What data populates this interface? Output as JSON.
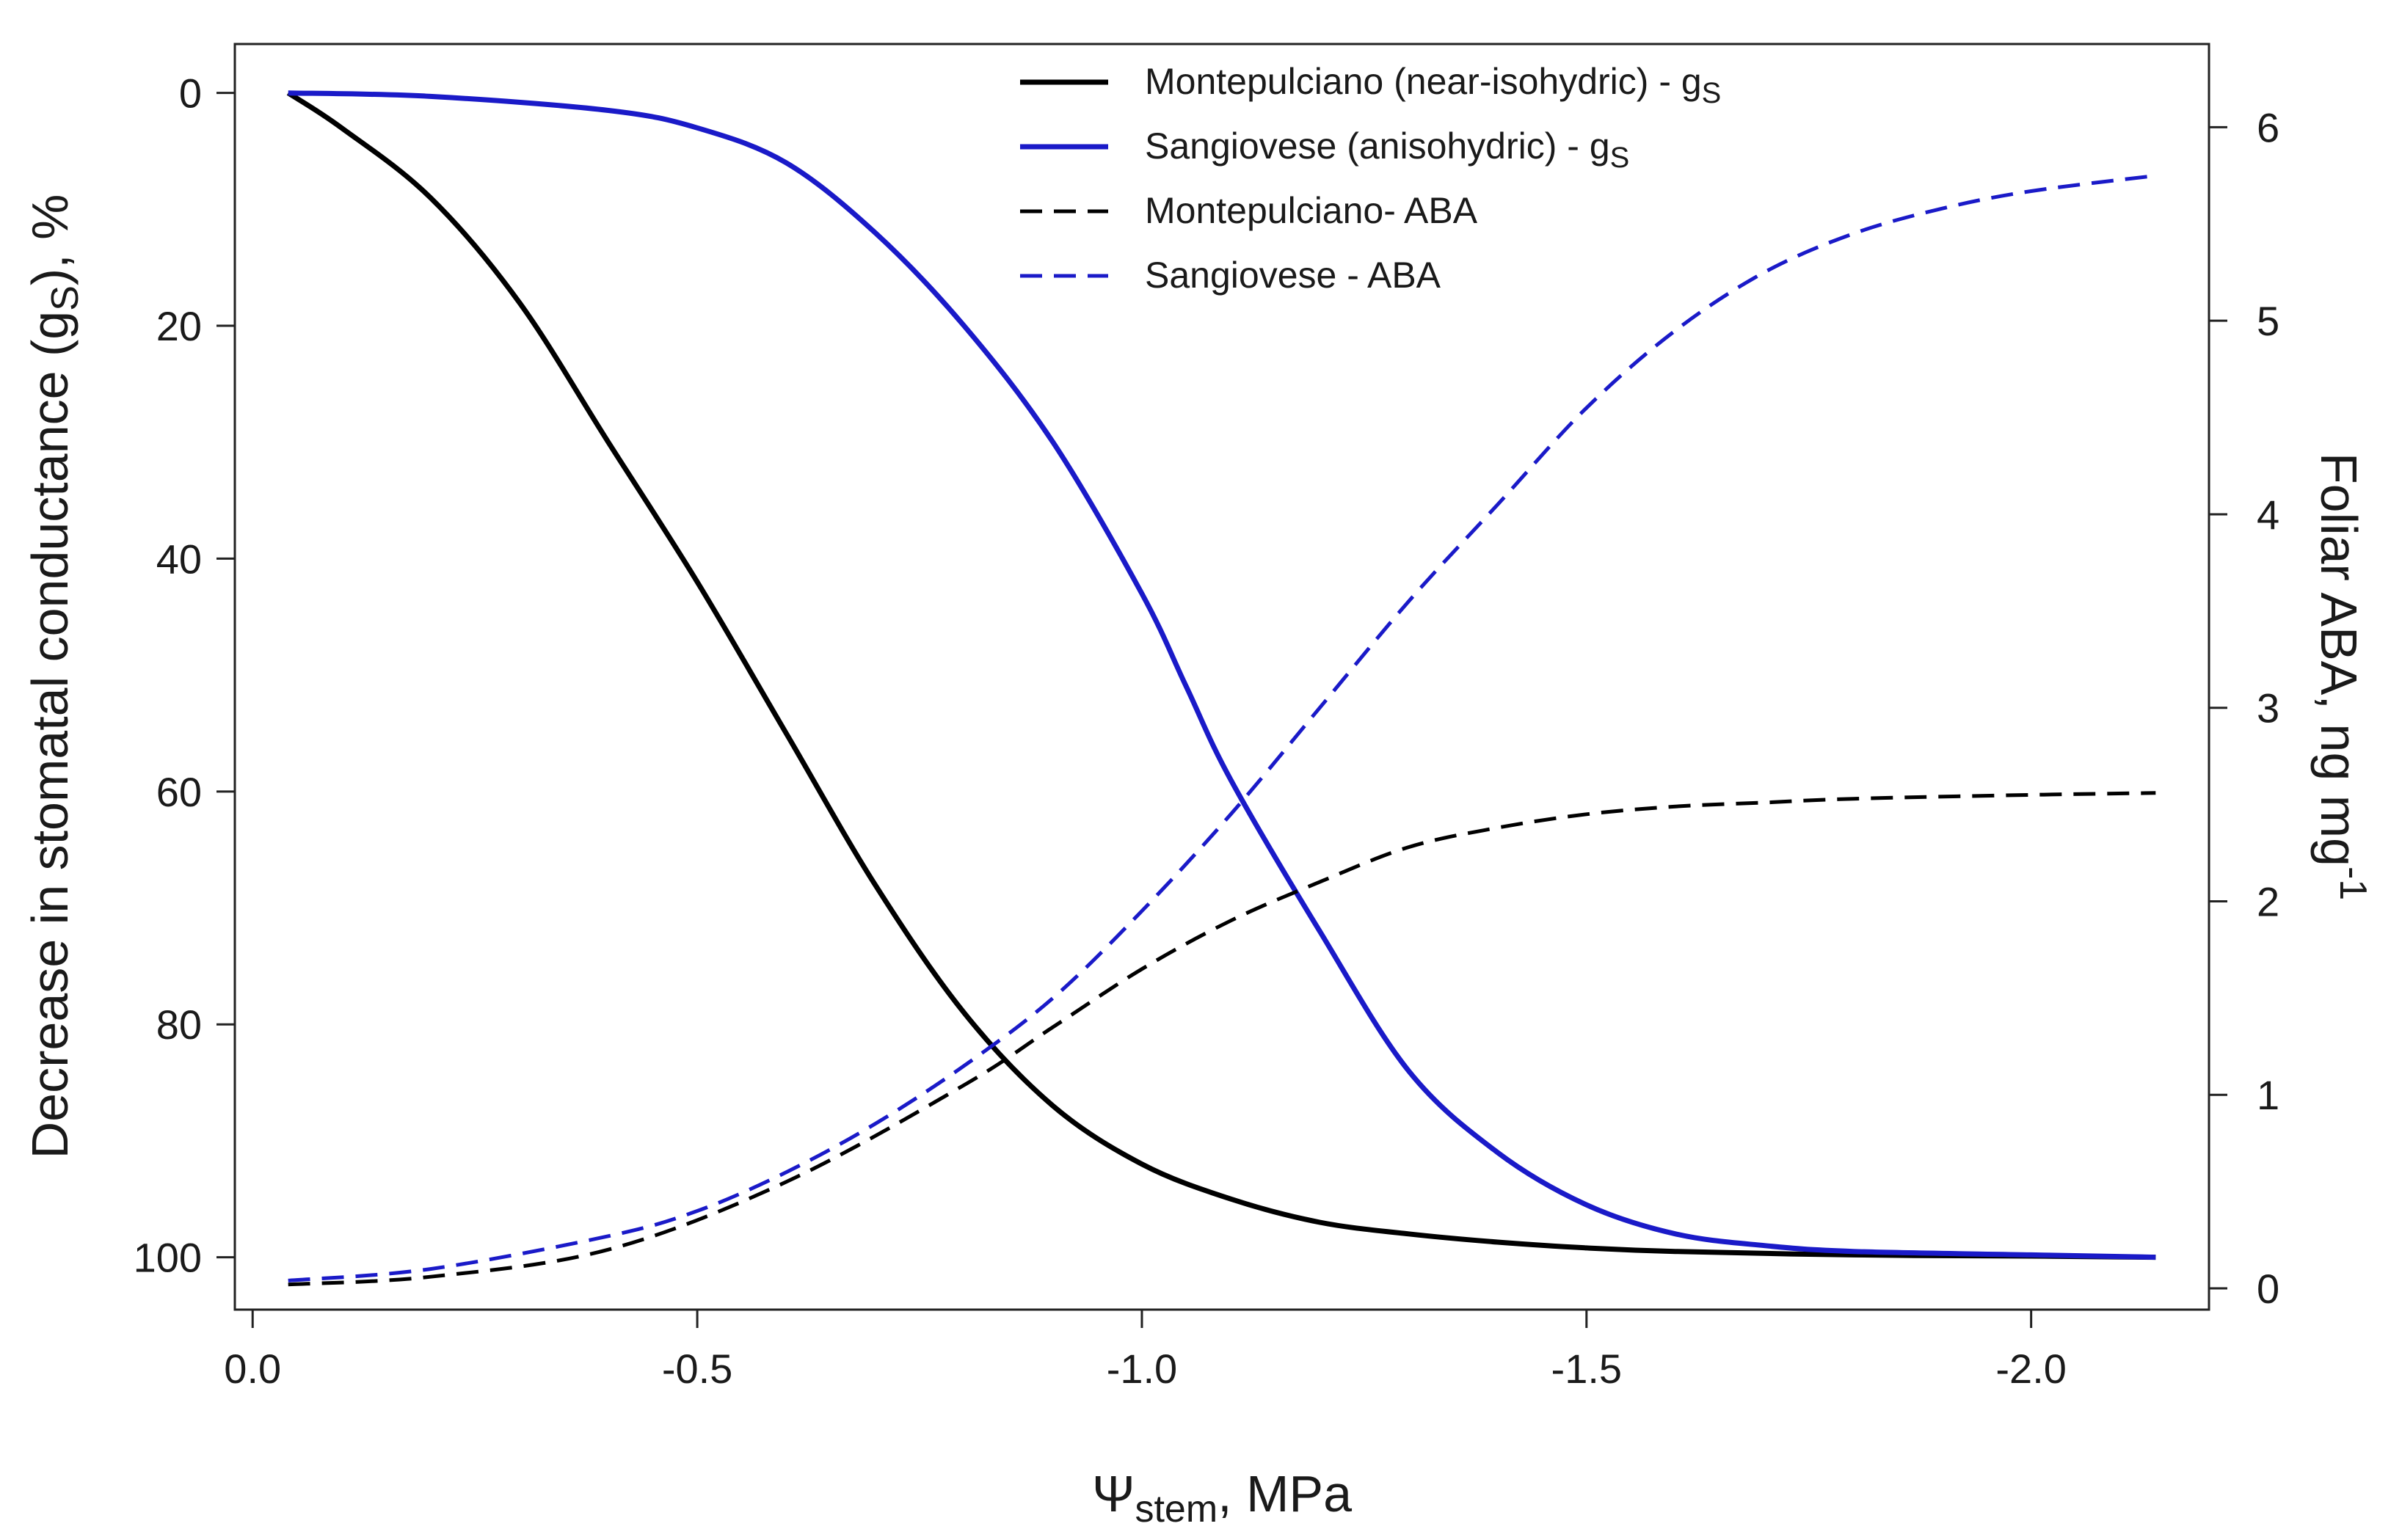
{
  "chart_data": {
    "type": "line",
    "title": "",
    "xlabel": {
      "psi": "Ψ",
      "sub": "stem",
      "rest": ", MPa"
    },
    "ylabel_left": {
      "pre": "Decrease in stomatal conductance (g",
      "sub": "S",
      "post": "), %"
    },
    "ylabel_right": {
      "pre": "Foliar ABA, ng mg",
      "sup": "-1"
    },
    "x_range": [
      0.02,
      -2.2
    ],
    "x_ticks": [
      "0.0",
      "-0.5",
      "-1.0",
      "-1.5",
      "-2.0"
    ],
    "y_left_range": [
      -4.2,
      104.5
    ],
    "y_left_ticks": [
      "0",
      "20",
      "40",
      "60",
      "80",
      "100"
    ],
    "y_right_range": [
      -0.11,
      6.43
    ],
    "y_right_ticks": [
      "0",
      "1",
      "2",
      "3",
      "4",
      "5",
      "6"
    ],
    "series": [
      {
        "name": "Montepulciano (near-isohydric) - g",
        "sub": "S",
        "axis": "left",
        "color": "#000000",
        "dash": "solid",
        "x": [
          -0.04,
          -0.1,
          -0.2,
          -0.3,
          -0.4,
          -0.5,
          -0.6,
          -0.7,
          -0.8,
          -0.9,
          -1.0,
          -1.1,
          -1.2,
          -1.3,
          -1.4,
          -1.5,
          -1.6,
          -1.8,
          -2.0,
          -2.14
        ],
        "y": [
          0,
          3,
          9,
          18,
          30,
          42,
          55,
          68,
          79,
          87,
          92,
          95,
          97,
          98,
          98.7,
          99.2,
          99.5,
          99.8,
          99.9,
          100
        ]
      },
      {
        "name": "Sangiovese (anisohydric) - g",
        "sub": "S",
        "axis": "left",
        "color": "#1a1ac8",
        "dash": "solid",
        "x": [
          -0.04,
          -0.2,
          -0.4,
          -0.5,
          -0.6,
          -0.7,
          -0.8,
          -0.9,
          -1.0,
          -1.05,
          -1.1,
          -1.2,
          -1.3,
          -1.4,
          -1.5,
          -1.6,
          -1.7,
          -1.8,
          -2.0,
          -2.14
        ],
        "y": [
          0,
          0.3,
          1.5,
          3,
          6,
          12,
          20,
          30,
          43,
          51,
          59,
          72,
          84,
          91,
          95.5,
          98,
          99,
          99.5,
          99.8,
          100
        ]
      },
      {
        "name": "Montepulciano- ABA",
        "axis": "right",
        "color": "#000000",
        "dash": "dashed",
        "x": [
          -0.04,
          -0.2,
          -0.4,
          -0.6,
          -0.8,
          -0.9,
          -1.0,
          -1.1,
          -1.2,
          -1.3,
          -1.4,
          -1.5,
          -1.6,
          -1.7,
          -1.8,
          -2.0,
          -2.14
        ],
        "y": [
          0.02,
          0.06,
          0.2,
          0.55,
          1.05,
          1.35,
          1.65,
          1.9,
          2.1,
          2.28,
          2.38,
          2.45,
          2.49,
          2.51,
          2.53,
          2.55,
          2.56
        ]
      },
      {
        "name": "Sangiovese - ABA",
        "axis": "right",
        "color": "#1a1ac8",
        "dash": "dashed",
        "x": [
          -0.04,
          -0.2,
          -0.4,
          -0.5,
          -0.6,
          -0.7,
          -0.8,
          -0.9,
          -1.0,
          -1.1,
          -1.2,
          -1.3,
          -1.4,
          -1.5,
          -1.6,
          -1.7,
          -1.8,
          -1.9,
          -2.0,
          -2.14
        ],
        "y": [
          0.04,
          0.1,
          0.27,
          0.4,
          0.6,
          0.85,
          1.15,
          1.5,
          1.95,
          2.45,
          3.0,
          3.55,
          4.05,
          4.55,
          4.95,
          5.25,
          5.45,
          5.58,
          5.67,
          5.75
        ]
      }
    ],
    "legend_placement": "top-center"
  }
}
